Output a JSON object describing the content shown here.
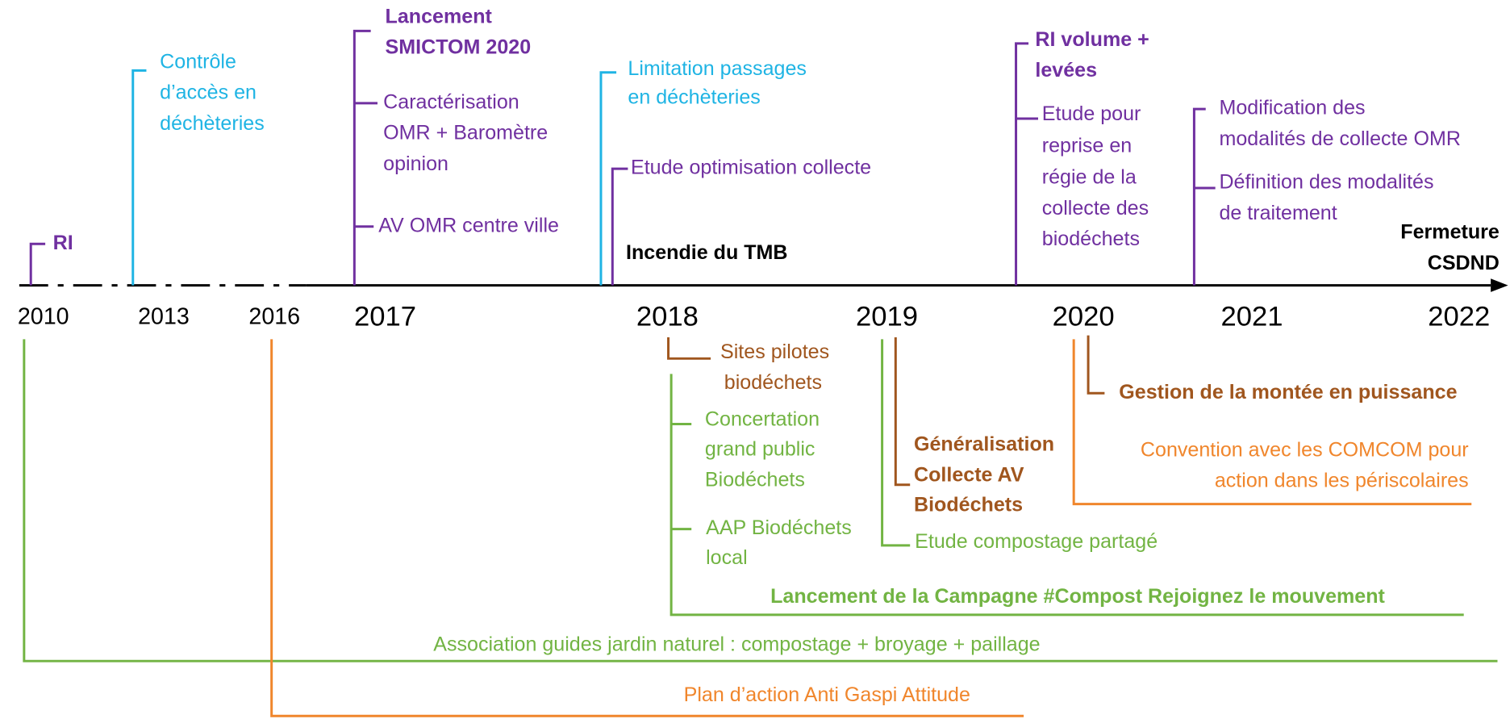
{
  "years": [
    "2010",
    "2013",
    "2016",
    "2017",
    "2018",
    "2019",
    "2020",
    "2021",
    "2022"
  ],
  "above": [
    {
      "lines": [
        "RI"
      ]
    },
    {
      "lines": [
        "Contrôle",
        "d’accès en",
        "déchèteries"
      ]
    },
    {
      "lines": [
        "Lancement",
        "SMICTOM 2020"
      ]
    },
    {
      "lines": [
        "Caractérisation",
        "OMR + Baromètre",
        "opinion"
      ]
    },
    {
      "lines": [
        "AV OMR centre ville"
      ]
    },
    {
      "lines": [
        "Limitation passages",
        "en déchèteries"
      ]
    },
    {
      "lines": [
        "Etude optimisation collecte"
      ]
    },
    {
      "lines": [
        "Incendie du TMB"
      ]
    },
    {
      "lines": [
        "RI volume +",
        "levées"
      ]
    },
    {
      "lines": [
        "Etude pour",
        "reprise en",
        "régie de la",
        "collecte des",
        "biodéchets"
      ]
    },
    {
      "lines": [
        "Modification des",
        "modalités de collecte OMR"
      ]
    },
    {
      "lines": [
        "Définition des modalités",
        "de traitement"
      ]
    },
    {
      "lines": [
        "Fermeture",
        "CSDND"
      ]
    }
  ],
  "below": [
    {
      "lines": [
        "Sites pilotes",
        "biodéchets"
      ]
    },
    {
      "lines": [
        "Concertation",
        "grand public",
        "Biodéchets"
      ]
    },
    {
      "lines": [
        "AAP Biodéchets",
        "local"
      ]
    },
    {
      "lines": [
        "Lancement de la Campagne #Compost Rejoignez le mouvement"
      ]
    },
    {
      "lines": [
        "Etude compostage partagé"
      ]
    },
    {
      "lines": [
        "Généralisation",
        "Collecte AV",
        "Biodéchets"
      ]
    },
    {
      "lines": [
        "Gestion de la montée en puissance"
      ]
    },
    {
      "lines": [
        "Convention avec les COMCOM pour",
        "action dans les périscolaires"
      ]
    },
    {
      "lines": [
        "Association guides jardin naturel : compostage + broyage + paillage"
      ]
    },
    {
      "lines": [
        "Plan d’action Anti Gaspi Attitude"
      ]
    }
  ]
}
